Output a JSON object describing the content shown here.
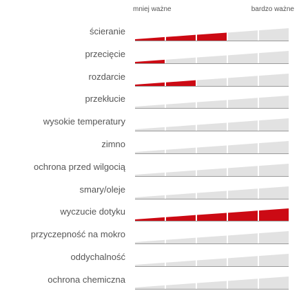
{
  "scale": {
    "low_label": "mniej ważne",
    "high_label": "bardzo ważne"
  },
  "colors": {
    "fill": "#cc0a14",
    "track": "#e2e2e2",
    "baseline": "#999999"
  },
  "properties": [
    {
      "label": "ścieranie",
      "value": 0.6
    },
    {
      "label": "przecięcie",
      "value": 0.2
    },
    {
      "label": "rozdarcie",
      "value": 0.4
    },
    {
      "label": "przekłucie",
      "value": 0
    },
    {
      "label": "wysokie temperatury",
      "value": 0
    },
    {
      "label": "zimno",
      "value": 0
    },
    {
      "label": "ochrona przed wilgocią",
      "value": 0
    },
    {
      "label": "smary/oleje",
      "value": 0
    },
    {
      "label": "wyczucie dotyku",
      "value": 1.0
    },
    {
      "label": "przyczepność na mokro",
      "value": 0
    },
    {
      "label": "oddychalność",
      "value": 0
    },
    {
      "label": "ochrona chemiczna",
      "value": 0
    }
  ]
}
